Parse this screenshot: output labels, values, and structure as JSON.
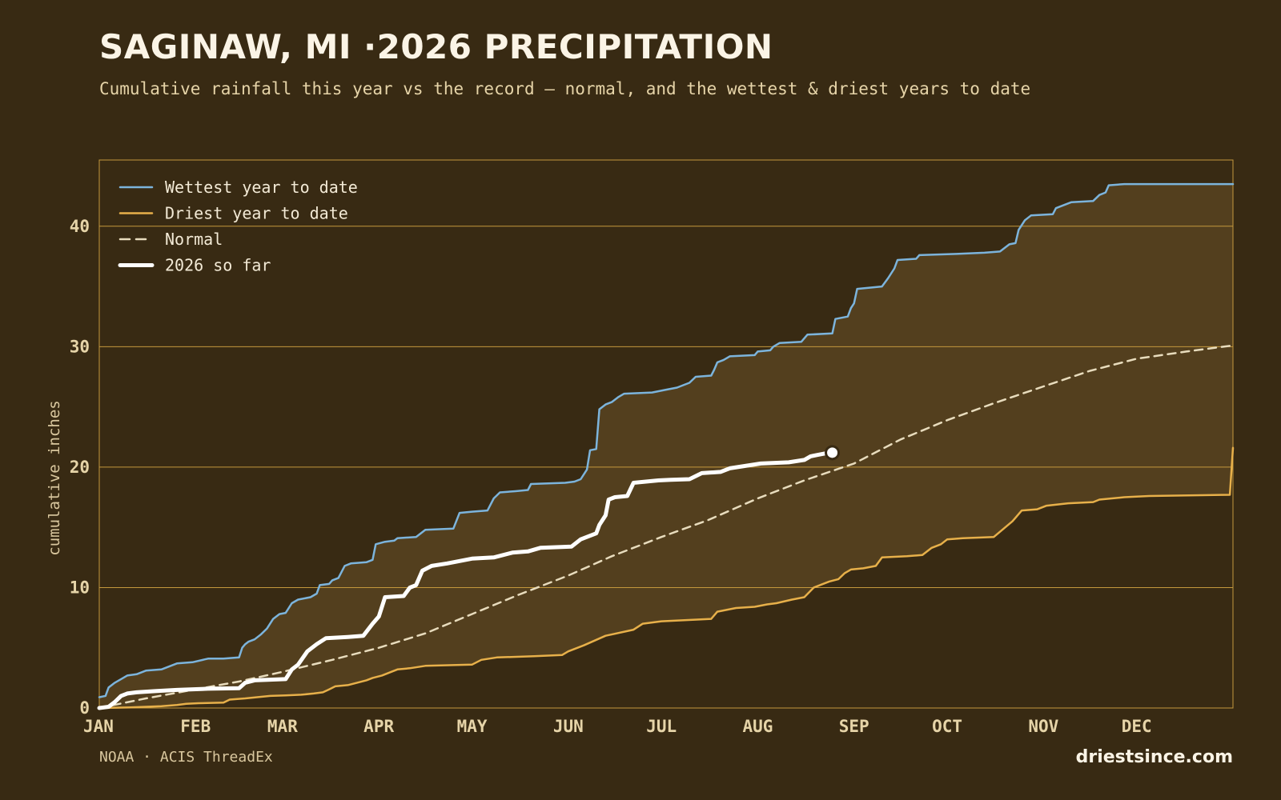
{
  "title": "SAGINAW, MI ·2026 PRECIPITATION",
  "subtitle": "Cumulative rainfall this year vs the record — normal, and the wettest & driest years to date",
  "footer": {
    "source": "NOAA · ACIS ThreadEx",
    "site": "driestsince.com"
  },
  "colors": {
    "background": "#382a13",
    "band_fill": "#533f1e",
    "grid": "#c4983d",
    "wettest": "#7cb4dc",
    "driest": "#e7b04a",
    "normal": "#e8dcbd",
    "current": "#ffffff"
  },
  "chart_data": {
    "type": "line",
    "title": "SAGINAW, MI ·2026 PRECIPITATION",
    "ylabel": "cumulative inches",
    "xlabel": "",
    "ylim": [
      0,
      45.5
    ],
    "xlim": [
      0,
      365
    ],
    "y_ticks": [
      0,
      10,
      20,
      30,
      40
    ],
    "x_ticks": [
      {
        "label": "JAN",
        "day": 0
      },
      {
        "label": "FEB",
        "day": 31
      },
      {
        "label": "MAR",
        "day": 59
      },
      {
        "label": "APR",
        "day": 90
      },
      {
        "label": "MAY",
        "day": 120
      },
      {
        "label": "JUN",
        "day": 151
      },
      {
        "label": "JUL",
        "day": 181
      },
      {
        "label": "AUG",
        "day": 212
      },
      {
        "label": "SEP",
        "day": 243
      },
      {
        "label": "OCT",
        "day": 273
      },
      {
        "label": "NOV",
        "day": 304
      },
      {
        "label": "DEC",
        "day": 334
      }
    ],
    "grid": "horizontal",
    "legend_position": "top-left",
    "series": [
      {
        "name": "Wettest year to date",
        "style": "solid",
        "points": [
          [
            0,
            0.9
          ],
          [
            2,
            1.0
          ],
          [
            3,
            1.7
          ],
          [
            5,
            2.1
          ],
          [
            7,
            2.4
          ],
          [
            9,
            2.7
          ],
          [
            12,
            2.8
          ],
          [
            15,
            3.1
          ],
          [
            20,
            3.2
          ],
          [
            25,
            3.7
          ],
          [
            30,
            3.8
          ],
          [
            35,
            4.1
          ],
          [
            40,
            4.1
          ],
          [
            45,
            4.2
          ],
          [
            46,
            5.0
          ],
          [
            47,
            5.3
          ],
          [
            48,
            5.5
          ],
          [
            50,
            5.7
          ],
          [
            52,
            6.1
          ],
          [
            54,
            6.6
          ],
          [
            56,
            7.4
          ],
          [
            58,
            7.8
          ],
          [
            60,
            7.9
          ],
          [
            62,
            8.7
          ],
          [
            64,
            9.0
          ],
          [
            68,
            9.2
          ],
          [
            70,
            9.5
          ],
          [
            71,
            10.2
          ],
          [
            74,
            10.3
          ],
          [
            75,
            10.6
          ],
          [
            77,
            10.8
          ],
          [
            79,
            11.8
          ],
          [
            81,
            12.0
          ],
          [
            86,
            12.1
          ],
          [
            88,
            12.3
          ],
          [
            89,
            13.6
          ],
          [
            92,
            13.8
          ],
          [
            95,
            13.9
          ],
          [
            96,
            14.1
          ],
          [
            102,
            14.2
          ],
          [
            105,
            14.8
          ],
          [
            114,
            14.9
          ],
          [
            116,
            16.2
          ],
          [
            120,
            16.3
          ],
          [
            125,
            16.4
          ],
          [
            127,
            17.4
          ],
          [
            129,
            17.9
          ],
          [
            134,
            18.0
          ],
          [
            138,
            18.1
          ],
          [
            139,
            18.6
          ],
          [
            150,
            18.7
          ],
          [
            153,
            18.8
          ],
          [
            155,
            19.0
          ],
          [
            157,
            19.8
          ],
          [
            158,
            21.4
          ],
          [
            160,
            21.5
          ],
          [
            161,
            24.8
          ],
          [
            163,
            25.2
          ],
          [
            165,
            25.4
          ],
          [
            167,
            25.8
          ],
          [
            169,
            26.1
          ],
          [
            178,
            26.2
          ],
          [
            182,
            26.4
          ],
          [
            186,
            26.6
          ],
          [
            188,
            26.8
          ],
          [
            190,
            27.0
          ],
          [
            192,
            27.5
          ],
          [
            197,
            27.6
          ],
          [
            198,
            28.1
          ],
          [
            199,
            28.7
          ],
          [
            201,
            28.9
          ],
          [
            203,
            29.2
          ],
          [
            211,
            29.3
          ],
          [
            212,
            29.6
          ],
          [
            216,
            29.7
          ],
          [
            217,
            30.0
          ],
          [
            219,
            30.3
          ],
          [
            226,
            30.4
          ],
          [
            228,
            31.0
          ],
          [
            236,
            31.1
          ],
          [
            237,
            32.3
          ],
          [
            241,
            32.5
          ],
          [
            242,
            33.2
          ],
          [
            243,
            33.6
          ],
          [
            244,
            34.8
          ],
          [
            252,
            35.0
          ],
          [
            254,
            35.7
          ],
          [
            256,
            36.5
          ],
          [
            257,
            37.2
          ],
          [
            263,
            37.3
          ],
          [
            264,
            37.6
          ],
          [
            276,
            37.7
          ],
          [
            285,
            37.8
          ],
          [
            290,
            37.9
          ],
          [
            293,
            38.5
          ],
          [
            295,
            38.6
          ],
          [
            296,
            39.7
          ],
          [
            298,
            40.5
          ],
          [
            300,
            40.9
          ],
          [
            307,
            41.0
          ],
          [
            308,
            41.5
          ],
          [
            311,
            41.8
          ],
          [
            313,
            42.0
          ],
          [
            320,
            42.1
          ],
          [
            322,
            42.6
          ],
          [
            324,
            42.8
          ],
          [
            325,
            43.4
          ],
          [
            330,
            43.5
          ],
          [
            365,
            43.5
          ]
        ]
      },
      {
        "name": "Driest year to date",
        "style": "solid",
        "points": [
          [
            0,
            0.0
          ],
          [
            10,
            0.05
          ],
          [
            20,
            0.15
          ],
          [
            25,
            0.25
          ],
          [
            28,
            0.35
          ],
          [
            32,
            0.4
          ],
          [
            40,
            0.45
          ],
          [
            42,
            0.7
          ],
          [
            47,
            0.8
          ],
          [
            55,
            1.0
          ],
          [
            60,
            1.05
          ],
          [
            65,
            1.1
          ],
          [
            69,
            1.2
          ],
          [
            72,
            1.3
          ],
          [
            74,
            1.55
          ],
          [
            76,
            1.8
          ],
          [
            80,
            1.9
          ],
          [
            83,
            2.1
          ],
          [
            86,
            2.3
          ],
          [
            88,
            2.5
          ],
          [
            91,
            2.7
          ],
          [
            94,
            3.0
          ],
          [
            96,
            3.2
          ],
          [
            100,
            3.3
          ],
          [
            105,
            3.5
          ],
          [
            120,
            3.6
          ],
          [
            123,
            4.0
          ],
          [
            128,
            4.2
          ],
          [
            140,
            4.3
          ],
          [
            149,
            4.4
          ],
          [
            151,
            4.7
          ],
          [
            156,
            5.2
          ],
          [
            163,
            6.0
          ],
          [
            172,
            6.5
          ],
          [
            175,
            7.0
          ],
          [
            181,
            7.2
          ],
          [
            197,
            7.4
          ],
          [
            199,
            8.0
          ],
          [
            205,
            8.3
          ],
          [
            211,
            8.4
          ],
          [
            215,
            8.6
          ],
          [
            218,
            8.7
          ],
          [
            223,
            9.0
          ],
          [
            227,
            9.2
          ],
          [
            230,
            10.0
          ],
          [
            235,
            10.5
          ],
          [
            238,
            10.7
          ],
          [
            240,
            11.2
          ],
          [
            242,
            11.5
          ],
          [
            246,
            11.6
          ],
          [
            250,
            11.8
          ],
          [
            252,
            12.5
          ],
          [
            260,
            12.6
          ],
          [
            265,
            12.7
          ],
          [
            268,
            13.3
          ],
          [
            271,
            13.6
          ],
          [
            273,
            14.0
          ],
          [
            278,
            14.1
          ],
          [
            288,
            14.2
          ],
          [
            294,
            15.5
          ],
          [
            297,
            16.4
          ],
          [
            302,
            16.5
          ],
          [
            305,
            16.8
          ],
          [
            312,
            17.0
          ],
          [
            320,
            17.1
          ],
          [
            322,
            17.3
          ],
          [
            330,
            17.5
          ],
          [
            338,
            17.6
          ],
          [
            364,
            17.7
          ],
          [
            365,
            21.6
          ]
        ]
      },
      {
        "name": "Normal",
        "style": "dashed",
        "points": [
          [
            0,
            0.0
          ],
          [
            15,
            0.8
          ],
          [
            30,
            1.5
          ],
          [
            45,
            2.2
          ],
          [
            59,
            3.0
          ],
          [
            75,
            4.0
          ],
          [
            90,
            5.0
          ],
          [
            105,
            6.2
          ],
          [
            120,
            7.8
          ],
          [
            135,
            9.4
          ],
          [
            151,
            11.0
          ],
          [
            165,
            12.6
          ],
          [
            181,
            14.2
          ],
          [
            196,
            15.6
          ],
          [
            212,
            17.4
          ],
          [
            227,
            18.9
          ],
          [
            243,
            20.3
          ],
          [
            258,
            22.3
          ],
          [
            273,
            23.9
          ],
          [
            288,
            25.3
          ],
          [
            304,
            26.7
          ],
          [
            319,
            28.0
          ],
          [
            334,
            29.0
          ],
          [
            350,
            29.6
          ],
          [
            365,
            30.1
          ]
        ]
      },
      {
        "name": "2026 so far",
        "style": "bold",
        "points": [
          [
            0,
            0.0
          ],
          [
            3,
            0.1
          ],
          [
            5,
            0.5
          ],
          [
            7,
            1.0
          ],
          [
            9,
            1.2
          ],
          [
            12,
            1.3
          ],
          [
            18,
            1.4
          ],
          [
            25,
            1.5
          ],
          [
            35,
            1.6
          ],
          [
            45,
            1.65
          ],
          [
            47,
            2.1
          ],
          [
            50,
            2.3
          ],
          [
            60,
            2.4
          ],
          [
            62,
            3.2
          ],
          [
            64,
            3.6
          ],
          [
            67,
            4.7
          ],
          [
            70,
            5.3
          ],
          [
            73,
            5.8
          ],
          [
            80,
            5.9
          ],
          [
            85,
            6.0
          ],
          [
            88,
            7.0
          ],
          [
            90,
            7.6
          ],
          [
            92,
            9.2
          ],
          [
            98,
            9.3
          ],
          [
            100,
            10.0
          ],
          [
            102,
            10.2
          ],
          [
            104,
            11.4
          ],
          [
            107,
            11.8
          ],
          [
            112,
            12.0
          ],
          [
            116,
            12.2
          ],
          [
            120,
            12.4
          ],
          [
            127,
            12.5
          ],
          [
            133,
            12.9
          ],
          [
            138,
            13.0
          ],
          [
            142,
            13.3
          ],
          [
            152,
            13.4
          ],
          [
            155,
            14.0
          ],
          [
            160,
            14.5
          ],
          [
            161,
            15.2
          ],
          [
            163,
            16.0
          ],
          [
            164,
            17.3
          ],
          [
            166,
            17.5
          ],
          [
            170,
            17.6
          ],
          [
            172,
            18.7
          ],
          [
            180,
            18.9
          ],
          [
            184,
            18.95
          ],
          [
            190,
            19.0
          ],
          [
            194,
            19.5
          ],
          [
            200,
            19.6
          ],
          [
            203,
            19.9
          ],
          [
            208,
            20.1
          ],
          [
            213,
            20.3
          ],
          [
            222,
            20.4
          ],
          [
            227,
            20.6
          ],
          [
            229,
            20.9
          ],
          [
            231,
            21.0
          ],
          [
            235,
            21.2
          ]
        ]
      }
    ],
    "current_marker": {
      "day": 236,
      "value": 21.2
    }
  }
}
